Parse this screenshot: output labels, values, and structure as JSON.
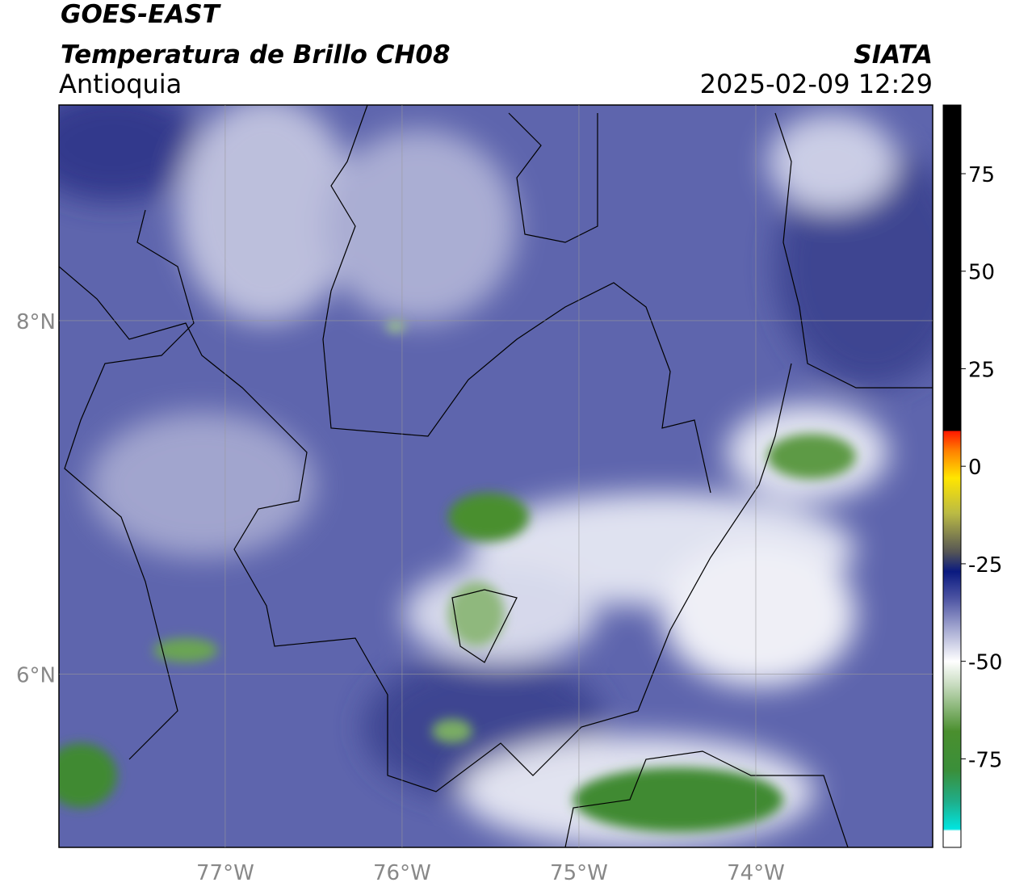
{
  "header": {
    "title": "GOES-EAST",
    "subtitle": "Temperatura de Brillo CH08",
    "region": "Antioquia",
    "source": "SIATA",
    "datetime": "2025-02-09 12:29"
  },
  "map": {
    "xlim": [
      -77.94,
      -73.0
    ],
    "ylim": [
      5.02,
      9.22
    ],
    "xticks": [
      {
        "value": -77,
        "label": "77°W"
      },
      {
        "value": -76,
        "label": "76°W"
      },
      {
        "value": -75,
        "label": "75°W"
      },
      {
        "value": -74,
        "label": "74°W"
      }
    ],
    "yticks": [
      {
        "value": 8,
        "label": "8°N"
      },
      {
        "value": 6,
        "label": "6°N"
      }
    ],
    "grid": true
  },
  "colorbar": {
    "lim": [
      -97.7,
      92.6
    ],
    "ticks": [
      75,
      50,
      25,
      0,
      -25,
      -50,
      -75
    ],
    "stops": [
      {
        "value": -97.7,
        "color": "#ffffff"
      },
      {
        "value": -93.5,
        "color": "#ffffff"
      },
      {
        "value": -93,
        "color": "#00e5e0"
      },
      {
        "value": -86,
        "color": "#1fae8a"
      },
      {
        "value": -78,
        "color": "#3a8f3a"
      },
      {
        "value": -68,
        "color": "#4a8f2e"
      },
      {
        "value": -56,
        "color": "#c8dcc0"
      },
      {
        "value": -50,
        "color": "#ffffff"
      },
      {
        "value": -42,
        "color": "#a8acd3"
      },
      {
        "value": -34,
        "color": "#4e55a3"
      },
      {
        "value": -27,
        "color": "#0a1a80"
      },
      {
        "value": -22,
        "color": "#555555"
      },
      {
        "value": -12,
        "color": "#bbbb44"
      },
      {
        "value": -3,
        "color": "#ffe600"
      },
      {
        "value": 4,
        "color": "#ff8000"
      },
      {
        "value": 8.9,
        "color": "#ff1a00"
      },
      {
        "value": 9.2,
        "color": "#000000"
      },
      {
        "value": 92.6,
        "color": "#000000"
      }
    ]
  }
}
